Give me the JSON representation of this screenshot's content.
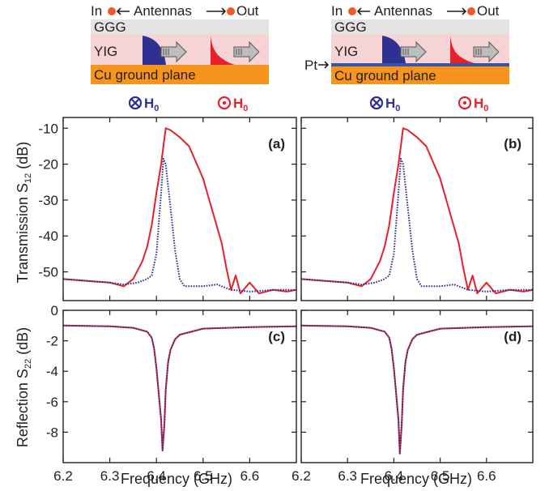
{
  "colors": {
    "red": "#e8202a",
    "blue": "#2e3192",
    "ggg": "#e4e4e4",
    "yig": "#f6d3d5",
    "cu": "#f7941d",
    "pt": "#3a53a4",
    "dot": "#f15a24"
  },
  "diagrams": [
    {
      "in_label": "In",
      "antennas_label": "Antennas",
      "out_label": "Out",
      "ggg_label": "GGG",
      "yig_label": "YIG",
      "cu_label": "Cu ground plane",
      "pt_label": "",
      "field_left": "H",
      "field_left_sub": "0",
      "field_right": "H",
      "field_right_sub": "0"
    },
    {
      "in_label": "In",
      "antennas_label": "Antennas",
      "out_label": "Out",
      "ggg_label": "GGG",
      "yig_label": "YIG",
      "cu_label": "Cu ground plane",
      "pt_label": "Pt",
      "field_left": "H",
      "field_left_sub": "0",
      "field_right": "H",
      "field_right_sub": "0"
    }
  ],
  "axes": {
    "xlabel": "Frequency (GHz)",
    "ylabel_top": "Transmission S",
    "ylabel_top_sub": "12",
    "ylabel_top_unit": " (dB)",
    "ylabel_bottom": "Reflection S",
    "ylabel_bottom_sub": "22",
    "ylabel_bottom_unit": " (dB)",
    "x_ticks": [
      "6.2",
      "6.3",
      "6.4",
      "6.5",
      "6.6"
    ],
    "top_y_ticks": [
      "-10",
      "-20",
      "-30",
      "-40",
      "-50"
    ],
    "bottom_y_ticks": [
      "0",
      "-2",
      "-4",
      "-6",
      "-8"
    ]
  },
  "chart_data": [
    {
      "panel": "(a)",
      "type": "line",
      "xlim": [
        6.2,
        6.7
      ],
      "ylim": [
        -58,
        -7
      ],
      "series": [
        {
          "style": "solid",
          "color": "red",
          "x": [
            6.2,
            6.25,
            6.3,
            6.33,
            6.35,
            6.37,
            6.38,
            6.39,
            6.4,
            6.41,
            6.415,
            6.42,
            6.43,
            6.45,
            6.47,
            6.5,
            6.52,
            6.54,
            6.55,
            6.56,
            6.57,
            6.58,
            6.6,
            6.62,
            6.65,
            6.68,
            6.7
          ],
          "y": [
            -52,
            -52.5,
            -53,
            -54,
            -52,
            -47,
            -43,
            -37,
            -28,
            -20,
            -15,
            -10,
            -10.5,
            -12.5,
            -15,
            -24,
            -33,
            -42,
            -49,
            -55,
            -51,
            -56,
            -53,
            -56,
            -55,
            -55.5,
            -55
          ]
        },
        {
          "style": "dotted",
          "color": "blue",
          "x": [
            6.2,
            6.25,
            6.3,
            6.33,
            6.36,
            6.38,
            6.39,
            6.4,
            6.41,
            6.415,
            6.42,
            6.43,
            6.44,
            6.45,
            6.46,
            6.48,
            6.5,
            6.53,
            6.56,
            6.6,
            6.65,
            6.7
          ],
          "y": [
            -52,
            -52.5,
            -53,
            -53.5,
            -53,
            -52,
            -51,
            -45,
            -28,
            -18.5,
            -20,
            -32,
            -44,
            -52,
            -54,
            -54,
            -54,
            -53.5,
            -55,
            -55.5,
            -55,
            -55
          ]
        }
      ]
    },
    {
      "panel": "(b)",
      "type": "line",
      "xlim": [
        6.2,
        6.7
      ],
      "ylim": [
        -58,
        -7
      ],
      "series": [
        {
          "style": "solid",
          "color": "red",
          "x": [
            6.2,
            6.25,
            6.3,
            6.33,
            6.35,
            6.37,
            6.38,
            6.39,
            6.4,
            6.41,
            6.415,
            6.42,
            6.43,
            6.45,
            6.47,
            6.5,
            6.52,
            6.54,
            6.55,
            6.56,
            6.57,
            6.58,
            6.6,
            6.62,
            6.65,
            6.68,
            6.7
          ],
          "y": [
            -52,
            -52.5,
            -53,
            -54,
            -52,
            -47,
            -43,
            -37,
            -28,
            -20,
            -15,
            -10,
            -10.5,
            -12.5,
            -15,
            -24,
            -33,
            -42,
            -49,
            -55,
            -51,
            -56,
            -53,
            -56,
            -55,
            -55.5,
            -55
          ]
        },
        {
          "style": "dotted",
          "color": "blue",
          "x": [
            6.2,
            6.25,
            6.3,
            6.33,
            6.36,
            6.38,
            6.39,
            6.4,
            6.41,
            6.415,
            6.42,
            6.43,
            6.44,
            6.45,
            6.46,
            6.48,
            6.5,
            6.53,
            6.56,
            6.6,
            6.65,
            6.7
          ],
          "y": [
            -52,
            -52.5,
            -53,
            -53.5,
            -53,
            -52,
            -51,
            -45,
            -28,
            -18.5,
            -20,
            -32,
            -44,
            -52,
            -54,
            -54,
            -54,
            -53.5,
            -55,
            -55.5,
            -55,
            -55
          ]
        }
      ]
    },
    {
      "panel": "(c)",
      "type": "line",
      "xlim": [
        6.2,
        6.7
      ],
      "ylim": [
        -10,
        0
      ],
      "series": [
        {
          "style": "solid",
          "color": "red",
          "x": [
            6.2,
            6.3,
            6.35,
            6.38,
            6.39,
            6.395,
            6.4,
            6.405,
            6.41,
            6.413,
            6.417,
            6.42,
            6.425,
            6.43,
            6.44,
            6.45,
            6.5,
            6.6,
            6.7
          ],
          "y": [
            -1.0,
            -1.05,
            -1.15,
            -1.4,
            -1.8,
            -2.5,
            -3.8,
            -5.5,
            -7.2,
            -9.2,
            -7.5,
            -5.2,
            -3.4,
            -2.6,
            -1.9,
            -1.6,
            -1.2,
            -1.1,
            -1.05
          ]
        },
        {
          "style": "dotted",
          "color": "blue",
          "x": [
            6.2,
            6.3,
            6.35,
            6.38,
            6.39,
            6.395,
            6.4,
            6.405,
            6.41,
            6.413,
            6.417,
            6.42,
            6.425,
            6.43,
            6.44,
            6.45,
            6.5,
            6.6,
            6.7
          ],
          "y": [
            -1.0,
            -1.05,
            -1.15,
            -1.4,
            -1.8,
            -2.5,
            -3.8,
            -5.5,
            -7.2,
            -9.2,
            -7.5,
            -5.2,
            -3.4,
            -2.6,
            -1.9,
            -1.6,
            -1.2,
            -1.1,
            -1.05
          ]
        }
      ]
    },
    {
      "panel": "(d)",
      "type": "line",
      "xlim": [
        6.2,
        6.7
      ],
      "ylim": [
        -10,
        0
      ],
      "series": [
        {
          "style": "solid",
          "color": "red",
          "x": [
            6.2,
            6.3,
            6.35,
            6.38,
            6.39,
            6.395,
            6.4,
            6.405,
            6.41,
            6.413,
            6.417,
            6.42,
            6.425,
            6.43,
            6.44,
            6.45,
            6.5,
            6.6,
            6.7
          ],
          "y": [
            -1.0,
            -1.05,
            -1.15,
            -1.4,
            -1.8,
            -2.5,
            -3.8,
            -5.5,
            -7.2,
            -9.4,
            -7.5,
            -5.2,
            -3.4,
            -2.6,
            -1.9,
            -1.6,
            -1.2,
            -1.1,
            -1.05
          ]
        },
        {
          "style": "dotted",
          "color": "blue",
          "x": [
            6.2,
            6.3,
            6.35,
            6.38,
            6.39,
            6.395,
            6.4,
            6.405,
            6.41,
            6.413,
            6.417,
            6.42,
            6.425,
            6.43,
            6.44,
            6.45,
            6.5,
            6.6,
            6.7
          ],
          "y": [
            -1.0,
            -1.05,
            -1.15,
            -1.4,
            -1.8,
            -2.5,
            -3.8,
            -5.5,
            -7.2,
            -9.4,
            -7.5,
            -5.2,
            -3.4,
            -2.6,
            -1.9,
            -1.6,
            -1.2,
            -1.1,
            -1.05
          ]
        }
      ]
    }
  ]
}
